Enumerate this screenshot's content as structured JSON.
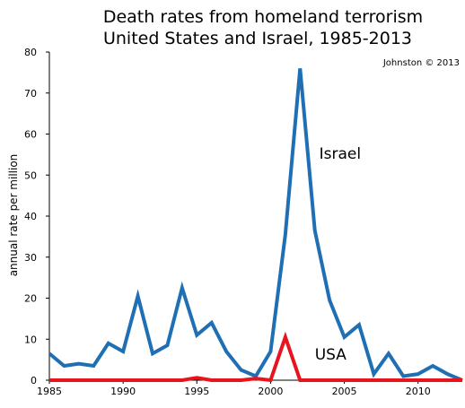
{
  "chart_data": {
    "type": "line",
    "title": [
      "Death rates from homeland terrorism",
      "United States and Israel, 1985-2013"
    ],
    "credit": "Johnston © 2013",
    "xlabel": "",
    "ylabel": "annual rate per million",
    "xlim": [
      1985,
      2013
    ],
    "ylim": [
      0,
      80
    ],
    "xticks": [
      1985,
      1990,
      1995,
      2000,
      2005,
      2010
    ],
    "yticks": [
      0,
      10,
      20,
      30,
      40,
      50,
      60,
      70,
      80
    ],
    "grid": false,
    "x": [
      1985,
      1986,
      1987,
      1988,
      1989,
      1990,
      1991,
      1992,
      1993,
      1994,
      1995,
      1996,
      1997,
      1998,
      1999,
      2000,
      2001,
      2002,
      2003,
      2004,
      2005,
      2006,
      2007,
      2008,
      2009,
      2010,
      2011,
      2012,
      2013
    ],
    "series": [
      {
        "name": "Israel",
        "color": "#1f6fb5",
        "values": [
          6.5,
          3.5,
          4,
          3.5,
          9,
          7,
          20.5,
          6.5,
          8.5,
          22.5,
          11,
          14,
          7,
          2.5,
          1,
          7,
          35.5,
          76,
          36.5,
          19.5,
          10.5,
          13.5,
          1.5,
          6.5,
          1,
          1.5,
          3.5,
          1.5,
          0
        ]
      },
      {
        "name": "USA",
        "color": "#e8141b",
        "values": [
          0,
          0,
          0,
          0,
          0,
          0,
          0,
          0,
          0,
          0,
          0.6,
          0,
          0,
          0,
          0.4,
          0,
          10.5,
          0,
          0,
          0,
          0,
          0,
          0,
          0,
          0,
          0,
          0,
          0,
          0
        ]
      }
    ]
  }
}
